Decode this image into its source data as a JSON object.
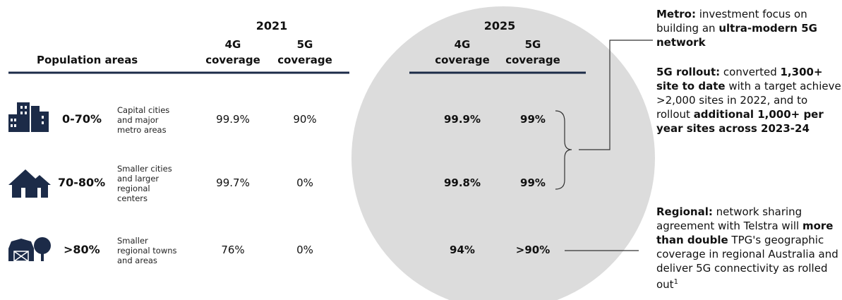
{
  "header": {
    "population_label": "Population areas",
    "years": [
      "2021",
      "2025"
    ],
    "columns": [
      "4G coverage",
      "5G coverage",
      "4G coverage",
      "5G coverage"
    ]
  },
  "rows": [
    {
      "share": "0-70%",
      "description": "Capital cities and major metro areas",
      "values": [
        "99.9%",
        "90%",
        "99.9%",
        "99%"
      ]
    },
    {
      "share": "70-80%",
      "description": "Smaller cities and larger regional centers",
      "values": [
        "99.7%",
        "0%",
        "99.8%",
        "99%"
      ]
    },
    {
      "share": ">80%",
      "description": "Smaller regional towns and areas",
      "values": [
        "76%",
        "0%",
        "94%",
        ">90%"
      ]
    }
  ],
  "notes": [
    [
      {
        "text": "Metro:",
        "bold": true
      },
      {
        "text": " investment focus on building an ",
        "bold": false
      },
      {
        "text": "ultra-modern 5G network",
        "bold": true
      }
    ],
    [
      {
        "text": "5G rollout:",
        "bold": true
      },
      {
        "text": " converted ",
        "bold": false
      },
      {
        "text": "1,300+ site to date",
        "bold": true
      },
      {
        "text": " with a target achieve >2,000 sites in 2022, and to rollout ",
        "bold": false
      },
      {
        "text": "additional 1,000+ per year sites across 2023-24",
        "bold": true
      }
    ],
    [
      {
        "text": "Regional:",
        "bold": true
      },
      {
        "text": " network sharing agreement with Telstra will ",
        "bold": false
      },
      {
        "text": "more than double",
        "bold": true
      },
      {
        "text": " TPG's geographic coverage in regional Australia and deliver 5G connectivity as rolled out",
        "bold": false
      },
      {
        "text": "1",
        "bold": false,
        "sup": true
      }
    ]
  ]
}
